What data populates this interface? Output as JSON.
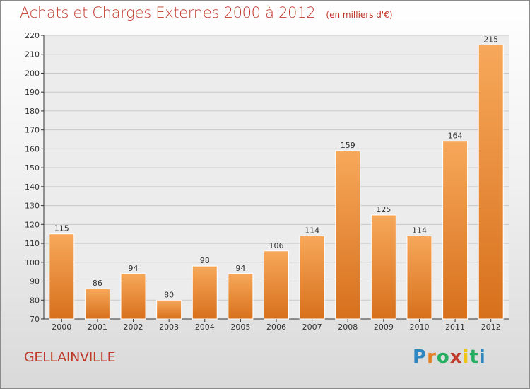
{
  "chart_data": {
    "type": "bar",
    "title": "Achats et Charges Externes 2000 à 2012",
    "subtitle": "(en milliers d'€)",
    "categories": [
      "2000",
      "2001",
      "2002",
      "2003",
      "2004",
      "2005",
      "2006",
      "2007",
      "2008",
      "2009",
      "2010",
      "2011",
      "2012"
    ],
    "values": [
      115,
      86,
      94,
      80,
      98,
      94,
      106,
      114,
      159,
      125,
      114,
      164,
      215
    ],
    "ylim": [
      70,
      220
    ],
    "yticks": [
      70,
      80,
      90,
      100,
      110,
      120,
      130,
      140,
      150,
      160,
      170,
      180,
      190,
      200,
      210,
      220
    ],
    "grid": true,
    "bar_color": "#f0922e",
    "xlabel": "",
    "ylabel": ""
  },
  "footer": {
    "town": "GELLAINVILLE",
    "brand": "Proxiti",
    "brand_colors": [
      "#2e86c1",
      "#e67e22",
      "#27ae60",
      "#c0392b",
      "#f1c40f",
      "#27ae60",
      "#2e86c1"
    ]
  },
  "colors": {
    "title": "#c0392b",
    "grid": "#c8c8c8",
    "axis": "#333333"
  }
}
